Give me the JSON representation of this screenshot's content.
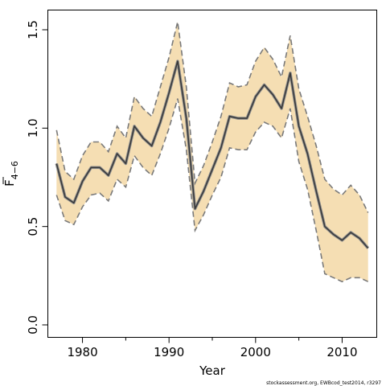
{
  "chart_data": {
    "type": "line",
    "xlabel": "Year",
    "ylabel_main": "F",
    "ylabel_sub": "4−6",
    "xlim": [
      1976,
      2014
    ],
    "ylim": [
      0,
      1.55
    ],
    "xticks": [
      1980,
      1990,
      2000,
      2010
    ],
    "xtick_labels": [
      "1980",
      "1990",
      "2000",
      "2010"
    ],
    "yticks": [
      0,
      0.5,
      1.0,
      1.5
    ],
    "ytick_labels": [
      "0.0",
      "0.5",
      "1.0",
      "1.5"
    ],
    "x": [
      1977,
      1978,
      1979,
      1980,
      1981,
      1982,
      1983,
      1984,
      1985,
      1986,
      1987,
      1988,
      1989,
      1990,
      1991,
      1992,
      1993,
      1994,
      1995,
      1996,
      1997,
      1998,
      1999,
      2000,
      2001,
      2002,
      2003,
      2004,
      2005,
      2006,
      2007,
      2008,
      2009,
      2010,
      2011,
      2012,
      2013
    ],
    "series": [
      {
        "role": "estimate",
        "values": [
          0.82,
          0.65,
          0.62,
          0.73,
          0.8,
          0.8,
          0.76,
          0.87,
          0.82,
          1.01,
          0.95,
          0.91,
          1.03,
          1.18,
          1.34,
          1.05,
          0.59,
          0.68,
          0.79,
          0.9,
          1.06,
          1.05,
          1.05,
          1.16,
          1.22,
          1.17,
          1.1,
          1.28,
          1.01,
          0.87,
          0.68,
          0.5,
          0.46,
          0.43,
          0.47,
          0.44,
          0.39
        ]
      },
      {
        "role": "upper",
        "values": [
          0.99,
          0.78,
          0.74,
          0.86,
          0.93,
          0.93,
          0.88,
          1.01,
          0.95,
          1.16,
          1.1,
          1.06,
          1.21,
          1.36,
          1.54,
          1.21,
          0.72,
          0.81,
          0.93,
          1.06,
          1.23,
          1.21,
          1.22,
          1.34,
          1.41,
          1.35,
          1.26,
          1.47,
          1.2,
          1.06,
          0.91,
          0.74,
          0.69,
          0.66,
          0.71,
          0.66,
          0.57
        ]
      },
      {
        "role": "lower",
        "values": [
          0.66,
          0.53,
          0.51,
          0.6,
          0.66,
          0.67,
          0.63,
          0.74,
          0.7,
          0.86,
          0.8,
          0.76,
          0.87,
          1.0,
          1.15,
          0.89,
          0.48,
          0.56,
          0.66,
          0.75,
          0.9,
          0.89,
          0.89,
          0.98,
          1.03,
          1.01,
          0.95,
          1.1,
          0.83,
          0.69,
          0.48,
          0.26,
          0.24,
          0.22,
          0.24,
          0.24,
          0.22
        ]
      }
    ],
    "colors": {
      "band": "#f5deb3",
      "band_edge": "#7a7a7a",
      "line": "#3a3a3a",
      "line_halo": "#8f8f8f"
    },
    "grid": false
  },
  "credit": "stockassessment.org, EWBcod_test2014, r3297"
}
